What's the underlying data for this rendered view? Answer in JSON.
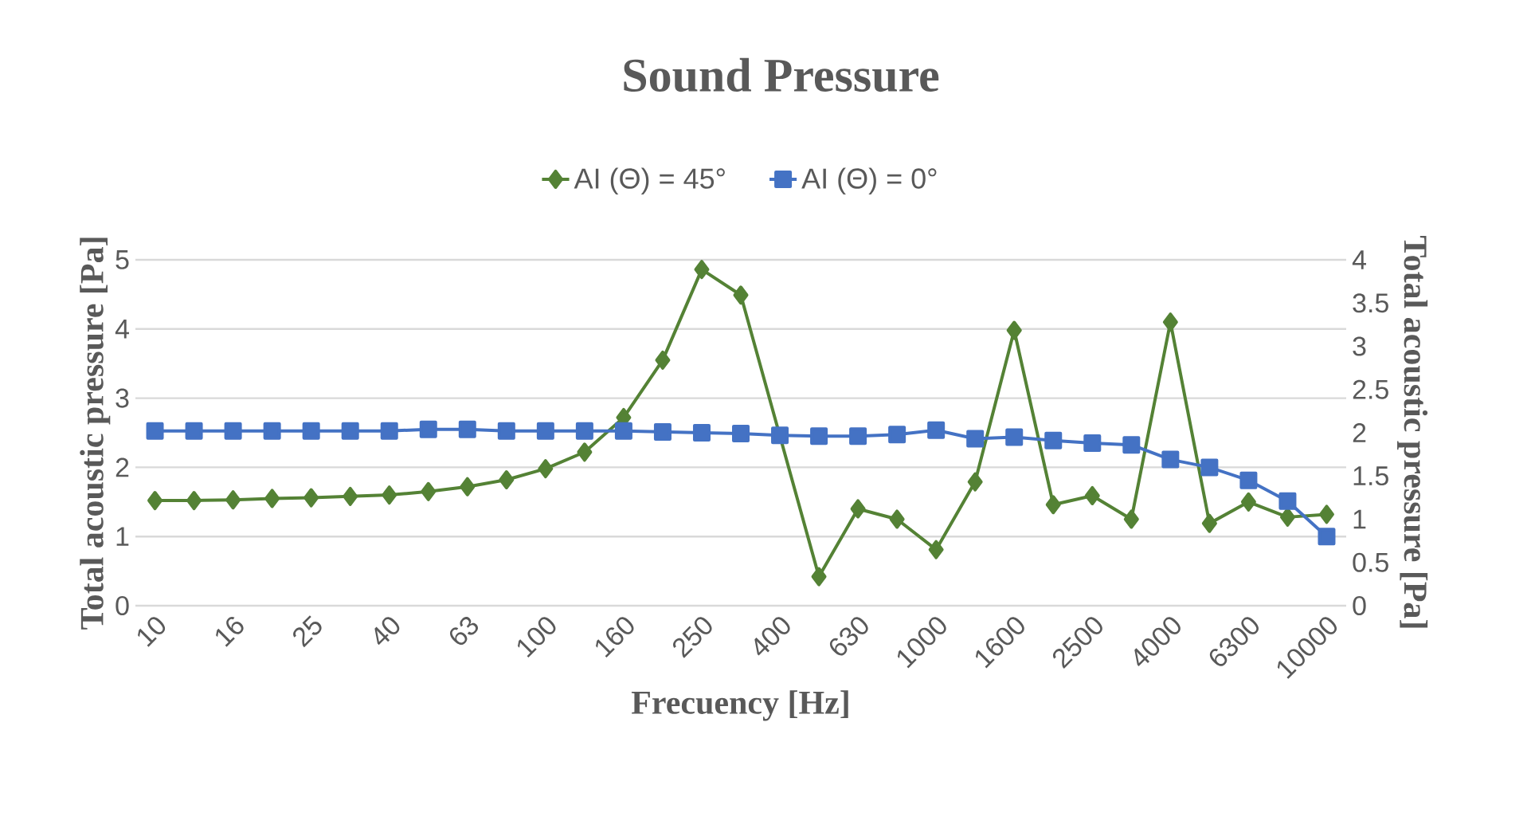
{
  "chart_data": {
    "type": "line",
    "title": "Sound Pressure",
    "xlabel": "Frecuency [Hz]",
    "ylabel": "Total acoustic pressure [Pa]",
    "y2label": "Total acoustic pressure [Pa]",
    "categories": [
      "10",
      null,
      "16",
      null,
      "25",
      null,
      "40",
      null,
      "63",
      null,
      "100",
      null,
      "160",
      null,
      "250",
      null,
      "400",
      null,
      "630",
      null,
      "1000",
      null,
      "1600",
      null,
      "2500",
      null,
      "4000",
      null,
      "6300",
      null,
      "10000"
    ],
    "series": [
      {
        "name": "AI (Θ) = 45°",
        "color": "#548235",
        "marker": "diamond",
        "values": [
          1.52,
          1.52,
          1.53,
          1.55,
          1.56,
          1.58,
          1.6,
          1.65,
          1.72,
          1.82,
          1.98,
          2.22,
          2.72,
          3.55,
          4.86,
          4.49,
          null,
          0.42,
          1.4,
          1.25,
          0.81,
          1.79,
          3.98,
          1.46,
          1.59,
          1.25,
          4.1,
          1.19,
          1.5,
          1.28,
          1.32
        ]
      },
      {
        "name": "AI (Θ) = 0°",
        "color": "#4472c4",
        "marker": "square",
        "axis": "y2",
        "values": [
          2.02,
          2.02,
          2.02,
          2.02,
          2.02,
          2.02,
          2.02,
          2.04,
          2.04,
          2.02,
          2.02,
          2.02,
          2.02,
          2.01,
          2.0,
          1.99,
          1.97,
          1.96,
          1.96,
          1.98,
          2.03,
          1.93,
          1.95,
          1.91,
          1.88,
          1.86,
          1.69,
          1.6,
          1.45,
          1.21,
          0.8
        ]
      }
    ],
    "ylim": [
      0,
      5
    ],
    "yticks": [
      0,
      1,
      2,
      3,
      4,
      5
    ],
    "y2lim": [
      0,
      4
    ],
    "y2ticks": [
      0,
      0.5,
      1,
      1.5,
      2,
      2.5,
      3,
      3.5,
      4
    ],
    "grid": "y",
    "legend": "top"
  }
}
